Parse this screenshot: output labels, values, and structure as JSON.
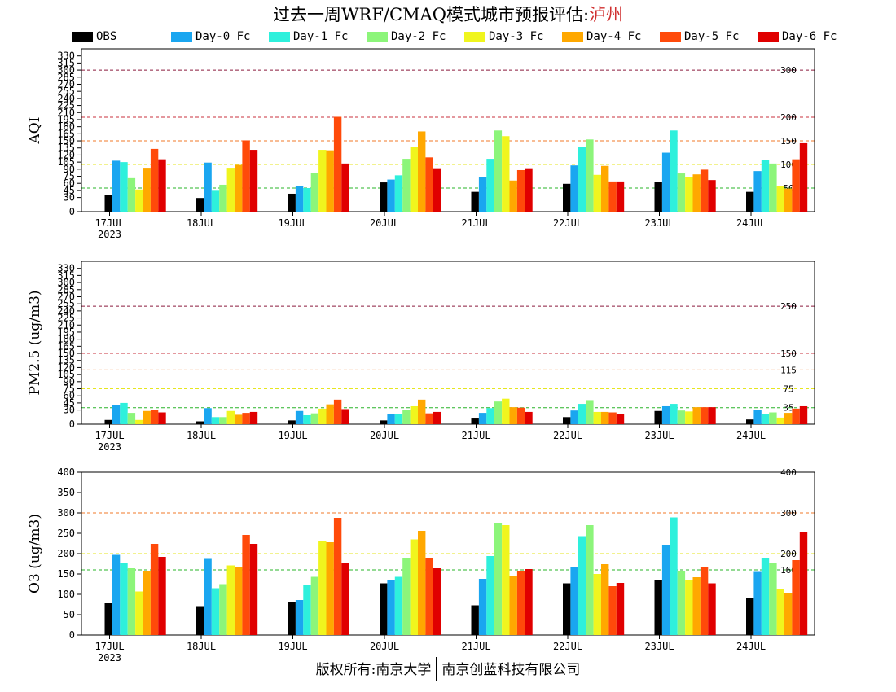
{
  "title": "过去一周WRF/CMAQ模式城市预报评估:",
  "city": "泸州",
  "footer": {
    "left": "版权所有:南京大学",
    "right": "南京创蓝科技有限公司"
  },
  "colors": {
    "OBS": "#000000",
    "Day-0 Fc": "#1aa6f0",
    "Day-1 Fc": "#2ef0dc",
    "Day-2 Fc": "#8cf57a",
    "Day-3 Fc": "#f0f51e",
    "Day-4 Fc": "#ffa800",
    "Day-5 Fc": "#ff4a0a",
    "Day-6 Fc": "#e00000"
  },
  "chart_data": [
    {
      "type": "bar",
      "ylabel": "AQI",
      "ylim": [
        0,
        345
      ],
      "yticks": [
        0,
        30,
        45,
        60,
        75,
        90,
        105,
        120,
        135,
        150,
        165,
        180,
        195,
        210,
        225,
        240,
        255,
        270,
        285,
        300,
        315,
        330
      ],
      "categories": [
        "17JUL",
        "18JUL",
        "19JUL",
        "20JUL",
        "21JUL",
        "22JUL",
        "23JUL",
        "24JUL"
      ],
      "first_category_sub": "2023",
      "thresholds": [
        {
          "value": 300,
          "label": "300",
          "color": "#8b1a3c"
        },
        {
          "value": 200,
          "label": "200",
          "color": "#c8323c"
        },
        {
          "value": 150,
          "label": "150",
          "color": "#f07828"
        },
        {
          "value": 100,
          "label": "100",
          "color": "#e6e61e"
        },
        {
          "value": 50,
          "label": "50",
          "color": "#28b428"
        }
      ],
      "series": [
        {
          "name": "OBS",
          "values": [
            35,
            29,
            38,
            62,
            42,
            59,
            63,
            42
          ]
        },
        {
          "name": "Day-0 Fc",
          "values": [
            108,
            104,
            54,
            68,
            73,
            98,
            125,
            86
          ]
        },
        {
          "name": "Day-1 Fc",
          "values": [
            105,
            46,
            50,
            77,
            112,
            138,
            172,
            110
          ]
        },
        {
          "name": "Day-2 Fc",
          "values": [
            71,
            57,
            82,
            112,
            172,
            153,
            81,
            102
          ]
        },
        {
          "name": "Day-3 Fc",
          "values": [
            47,
            93,
            131,
            138,
            160,
            78,
            73,
            54
          ]
        },
        {
          "name": "Day-4 Fc",
          "values": [
            93,
            99,
            130,
            170,
            66,
            97,
            79,
            49
          ]
        },
        {
          "name": "Day-5 Fc",
          "values": [
            133,
            151,
            201,
            115,
            88,
            64,
            89,
            111
          ]
        },
        {
          "name": "Day-6 Fc",
          "values": [
            111,
            131,
            102,
            92,
            92,
            64,
            67,
            145
          ]
        }
      ]
    },
    {
      "type": "bar",
      "ylabel": "PM2.5 (ug/m3)",
      "ylim": [
        0,
        345
      ],
      "yticks": [
        0,
        30,
        45,
        60,
        75,
        90,
        105,
        120,
        135,
        150,
        165,
        180,
        195,
        210,
        225,
        240,
        255,
        270,
        285,
        300,
        315,
        330
      ],
      "categories": [
        "17JUL",
        "18JUL",
        "19JUL",
        "20JUL",
        "21JUL",
        "22JUL",
        "23JUL",
        "24JUL"
      ],
      "first_category_sub": "2023",
      "thresholds": [
        {
          "value": 250,
          "label": "250",
          "color": "#8b1a3c"
        },
        {
          "value": 150,
          "label": "150",
          "color": "#c8323c"
        },
        {
          "value": 115,
          "label": "115",
          "color": "#f07828"
        },
        {
          "value": 75,
          "label": "75",
          "color": "#e6e61e"
        },
        {
          "value": 35,
          "label": "35",
          "color": "#28b428"
        }
      ],
      "series": [
        {
          "name": "OBS",
          "values": [
            9,
            6,
            8,
            8,
            12,
            15,
            28,
            10
          ]
        },
        {
          "name": "Day-0 Fc",
          "values": [
            41,
            34,
            28,
            21,
            24,
            29,
            38,
            31
          ]
        },
        {
          "name": "Day-1 Fc",
          "values": [
            45,
            15,
            19,
            22,
            34,
            43,
            43,
            21
          ]
        },
        {
          "name": "Day-2 Fc",
          "values": [
            24,
            15,
            23,
            31,
            48,
            51,
            29,
            25
          ]
        },
        {
          "name": "Day-3 Fc",
          "values": [
            9,
            28,
            33,
            38,
            54,
            26,
            27,
            14
          ]
        },
        {
          "name": "Day-4 Fc",
          "values": [
            28,
            20,
            42,
            52,
            36,
            26,
            36,
            24
          ]
        },
        {
          "name": "Day-5 Fc",
          "values": [
            30,
            24,
            52,
            23,
            35,
            25,
            36,
            33
          ]
        },
        {
          "name": "Day-6 Fc",
          "values": [
            25,
            26,
            32,
            26,
            26,
            22,
            36,
            38
          ]
        }
      ]
    },
    {
      "type": "bar",
      "ylabel": "O3 (ug/m3)",
      "ylim": [
        0,
        400
      ],
      "yticks": [
        0,
        50,
        100,
        150,
        200,
        250,
        300,
        350,
        400
      ],
      "categories": [
        "17JUL",
        "18JUL",
        "19JUL",
        "20JUL",
        "21JUL",
        "22JUL",
        "23JUL",
        "24JUL"
      ],
      "first_category_sub": "2023",
      "thresholds": [
        {
          "value": 400,
          "label": "400",
          "color": "#8b1a3c"
        },
        {
          "value": 300,
          "label": "300",
          "color": "#f07828"
        },
        {
          "value": 200,
          "label": "200",
          "color": "#e6e61e"
        },
        {
          "value": 160,
          "label": "160",
          "color": "#28b428"
        }
      ],
      "series": [
        {
          "name": "OBS",
          "values": [
            78,
            71,
            82,
            127,
            73,
            127,
            135,
            90
          ]
        },
        {
          "name": "Day-0 Fc",
          "values": [
            197,
            187,
            86,
            135,
            138,
            166,
            222,
            157
          ]
        },
        {
          "name": "Day-1 Fc",
          "values": [
            178,
            115,
            122,
            143,
            194,
            243,
            289,
            190
          ]
        },
        {
          "name": "Day-2 Fc",
          "values": [
            164,
            125,
            143,
            188,
            275,
            270,
            158,
            176
          ]
        },
        {
          "name": "Day-3 Fc",
          "values": [
            107,
            171,
            232,
            235,
            270,
            150,
            135,
            113
          ]
        },
        {
          "name": "Day-4 Fc",
          "values": [
            158,
            168,
            228,
            256,
            145,
            174,
            142,
            104
          ]
        },
        {
          "name": "Day-5 Fc",
          "values": [
            224,
            246,
            288,
            188,
            158,
            120,
            166,
            184
          ]
        },
        {
          "name": "Day-6 Fc",
          "values": [
            192,
            224,
            178,
            164,
            162,
            128,
            127,
            252
          ]
        }
      ]
    }
  ]
}
